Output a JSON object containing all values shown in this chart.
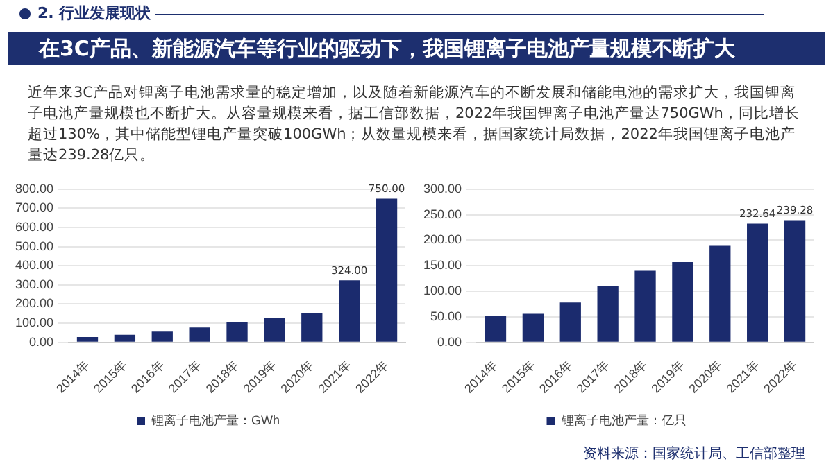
{
  "chart_data": [
    {
      "type": "bar",
      "title": "在3C产品、新能源汽车等行业的驱动下，我国锂离子电池产量规模不断扩大",
      "annotations": [
        "2. 行业发展现状",
        "近年来3C产品对锂离子电池需求量的稳定增加，以及随着新能源汽车的不断发展和储能电池的需求扩大，我国锂离子电池产量规模也不断扩大。从容量规模来看，据工信部数据，2022年我国锂离子电池产量达750GWh，同比增长超过130%，其中储能型锂电产量突破100GWh；从数量规模来看，据国家统计局数据，2022年我国锂离子电池产量达239.28亿只。"
      ],
      "categories": [
        "2014年",
        "2015年",
        "2016年",
        "2017年",
        "2018年",
        "2019年",
        "2020年",
        "2021年",
        "2022年"
      ],
      "series": [
        {
          "name": "锂离子电池产量：GWh",
          "color": "#1b2b6e",
          "values": [
            28,
            40,
            56,
            78,
            106,
            128,
            152,
            324,
            750
          ],
          "value_labels": [
            null,
            null,
            null,
            null,
            null,
            null,
            null,
            "324.00",
            "750.00"
          ]
        }
      ],
      "ylim": [
        0,
        800
      ],
      "yticks": [
        {
          "value": 0,
          "label": "0.00"
        },
        {
          "value": 100,
          "label": "100.00"
        },
        {
          "value": 200,
          "label": "200.00"
        },
        {
          "value": 300,
          "label": "300.00"
        },
        {
          "value": 400,
          "label": "400.00"
        },
        {
          "value": 500,
          "label": "500.00"
        },
        {
          "value": 600,
          "label": "600.00"
        },
        {
          "value": 700,
          "label": "700.00"
        },
        {
          "value": 800,
          "label": "800.00"
        }
      ],
      "grid": "y",
      "legend": "bottom"
    },
    {
      "type": "bar",
      "annotations": [
        "资料来源：国家统计局、工信部整理"
      ],
      "categories": [
        "2014年",
        "2015年",
        "2016年",
        "2017年",
        "2018年",
        "2019年",
        "2020年",
        "2021年",
        "2022年"
      ],
      "series": [
        {
          "name": "锂离子电池产量：亿只",
          "color": "#1b2b6e",
          "values": [
            52,
            56,
            78,
            110,
            140,
            157,
            189,
            232.64,
            239.28
          ],
          "value_labels": [
            null,
            null,
            null,
            null,
            null,
            null,
            null,
            "232.64",
            "239.28"
          ]
        }
      ],
      "ylim": [
        0,
        300
      ],
      "yticks": [
        {
          "value": 0,
          "label": "0.00"
        },
        {
          "value": 50,
          "label": "50.00"
        },
        {
          "value": 100,
          "label": "100.00"
        },
        {
          "value": 150,
          "label": "150.00"
        },
        {
          "value": 200,
          "label": "200.00"
        },
        {
          "value": 250,
          "label": "250.00"
        },
        {
          "value": 300,
          "label": "300.00"
        }
      ],
      "grid": "y",
      "legend": "bottom"
    }
  ]
}
